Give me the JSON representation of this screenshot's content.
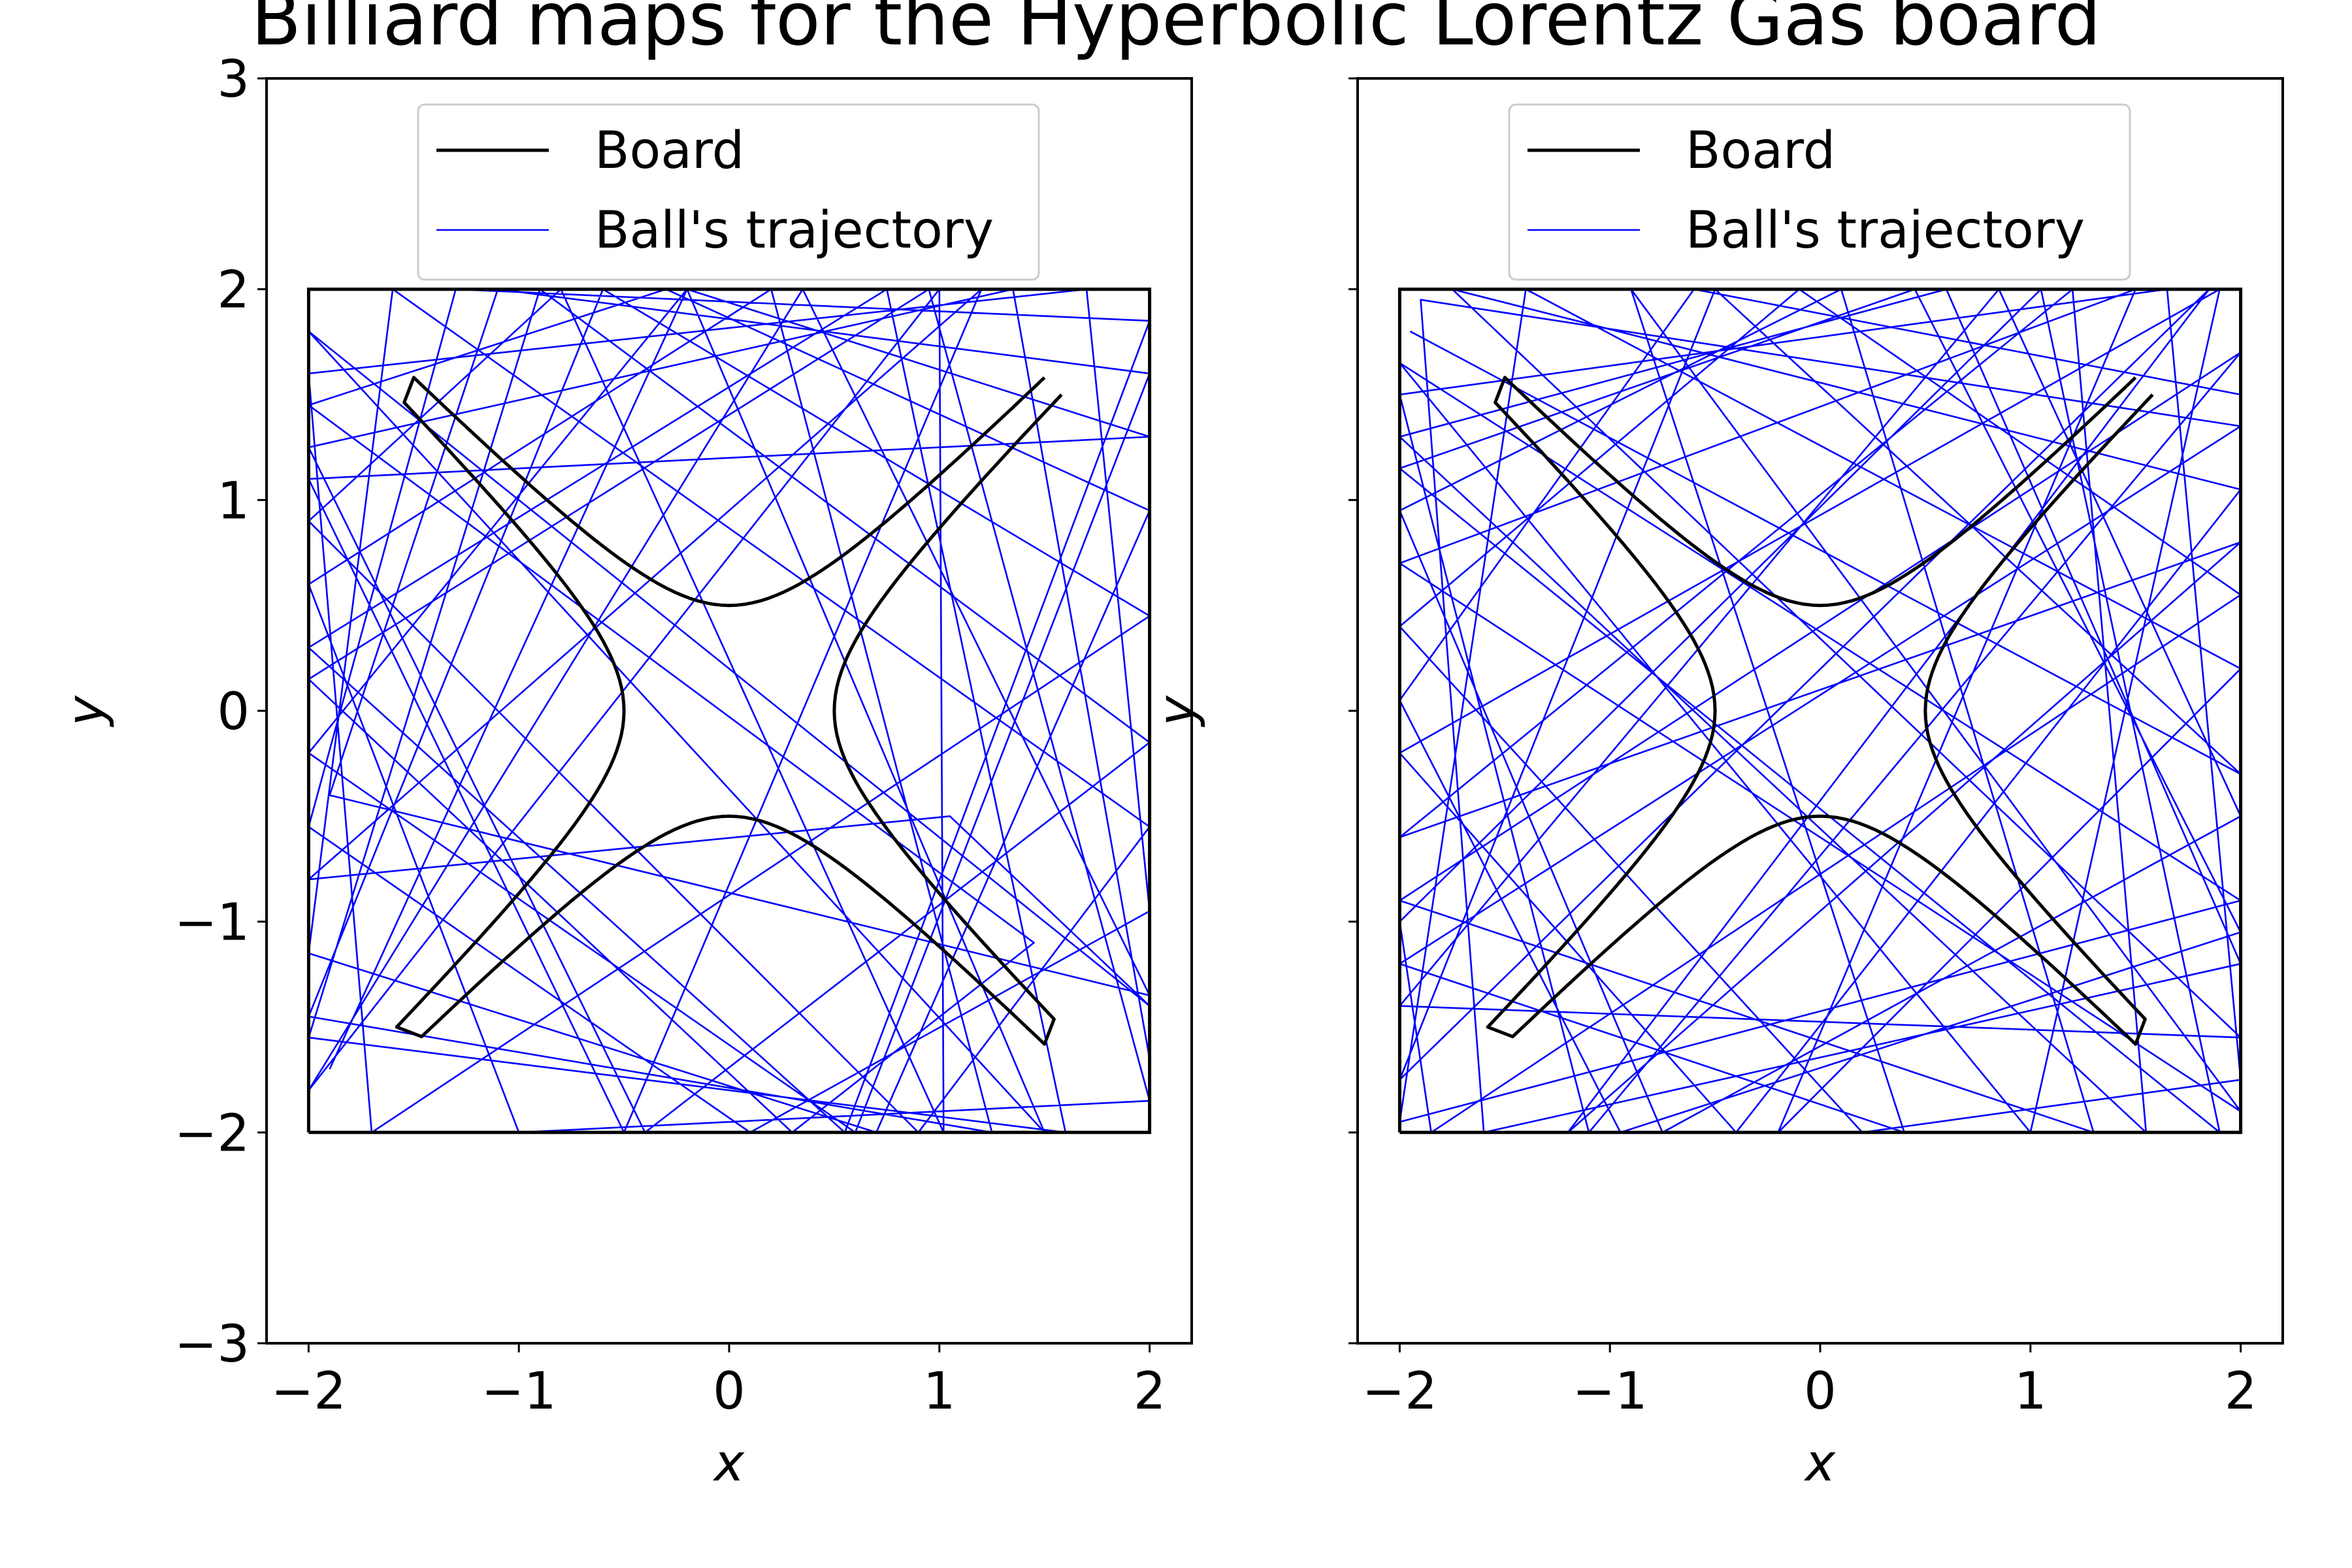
{
  "title": "Billiard maps for the Hyperbolic Lorentz Gas board",
  "colors": {
    "board": "#000000",
    "trajectory": "#0000ff",
    "legend_frame": "#cccccc"
  },
  "chart_data": [
    {
      "type": "line",
      "panel": "left",
      "xlabel": "x",
      "ylabel": "y",
      "xlim": [
        -2.2,
        2.2
      ],
      "ylim": [
        -3,
        3
      ],
      "xticks": [
        -2,
        -1,
        0,
        1,
        2
      ],
      "yticks": [
        -3,
        -2,
        -1,
        0,
        1,
        2,
        3
      ],
      "xtick_labels": [
        "−2",
        "−1",
        "0",
        "1",
        "2"
      ],
      "ytick_labels": [
        "−3",
        "−2",
        "−1",
        "0",
        "1",
        "2",
        "3"
      ],
      "grid": false,
      "legend_position": "upper center",
      "series": [
        {
          "name": "Board",
          "kind": "board",
          "outer_square": [
            [
              -2,
              -2
            ],
            [
              2,
              -2
            ],
            [
              2,
              2
            ],
            [
              -2,
              2
            ],
            [
              -2,
              -2
            ]
          ],
          "inner_hyperbola_a": 0.5,
          "inner_corner": 1.5
        },
        {
          "name": "Ball's trajectory",
          "kind": "trajectory",
          "points": [
            [
              -1.9,
              -1.7
            ],
            [
              -0.2,
              2
            ],
            [
              2,
              1.3
            ],
            [
              -2,
              1.1
            ],
            [
              -0.5,
              -2
            ],
            [
              1.2,
              2
            ],
            [
              -2,
              -0.8
            ],
            [
              1.05,
              -0.5
            ],
            [
              2,
              -1.4
            ],
            [
              -2,
              1.8
            ],
            [
              1.5,
              -2
            ],
            [
              -0.2,
              2
            ],
            [
              -2,
              -0.2
            ],
            [
              0.6,
              -2
            ],
            [
              2,
              1.6
            ],
            [
              -1.1,
              2
            ],
            [
              -1.9,
              -0.4
            ],
            [
              2,
              -1.35
            ],
            [
              0.35,
              2
            ],
            [
              -2,
              -1.8
            ],
            [
              1.0,
              2
            ],
            [
              1.02,
              -2
            ],
            [
              -0.8,
              2
            ],
            [
              -2,
              0.9
            ],
            [
              0.9,
              -2
            ],
            [
              2,
              -0.55
            ],
            [
              -1.6,
              2
            ],
            [
              -2,
              -1.15
            ],
            [
              0.7,
              -2
            ],
            [
              2,
              0.95
            ],
            [
              -0.3,
              2
            ],
            [
              -2,
              1.45
            ],
            [
              1.45,
              -1.1
            ],
            [
              0.3,
              -2
            ],
            [
              -2,
              0.15
            ],
            [
              0.95,
              2
            ],
            [
              2,
              -1.85
            ],
            [
              -1.0,
              -2
            ],
            [
              -2,
              0.6
            ],
            [
              0.2,
              2
            ],
            [
              1.25,
              -2
            ],
            [
              -2,
              -1.45
            ],
            [
              -0.6,
              2
            ],
            [
              2,
              0.45
            ],
            [
              -1.7,
              -2
            ],
            [
              -2,
              1.6
            ],
            [
              1.7,
              2
            ],
            [
              2,
              -0.95
            ],
            [
              0.1,
              -2
            ],
            [
              -2,
              -0.55
            ],
            [
              -1.3,
              2
            ],
            [
              2,
              1.85
            ],
            [
              0.55,
              -2
            ],
            [
              -2,
              0.3
            ],
            [
              0.75,
              2
            ],
            [
              1.6,
              -2
            ],
            [
              -2,
              -1.55
            ],
            [
              -0.9,
              2
            ],
            [
              2,
              -0.15
            ],
            [
              -0.4,
              -2
            ],
            [
              -2,
              1.25
            ],
            [
              1.35,
              2
            ],
            [
              2,
              -1.65
            ]
          ]
        }
      ]
    },
    {
      "type": "line",
      "panel": "right",
      "xlabel": "x",
      "ylabel": "y",
      "xlim": [
        -2.2,
        2.2
      ],
      "ylim": [
        -3,
        3
      ],
      "xticks": [
        -2,
        -1,
        0,
        1,
        2
      ],
      "yticks": [
        -3,
        -2,
        -1,
        0,
        1,
        2,
        3
      ],
      "xtick_labels": [
        "−2",
        "−1",
        "0",
        "1",
        "2"
      ],
      "ytick_labels": [],
      "grid": false,
      "legend_position": "upper center",
      "series": [
        {
          "name": "Board",
          "kind": "board",
          "outer_square": [
            [
              -2,
              -2
            ],
            [
              2,
              -2
            ],
            [
              2,
              2
            ],
            [
              -2,
              2
            ],
            [
              -2,
              -2
            ]
          ],
          "inner_hyperbola_a": 0.5,
          "inner_corner": 1.5
        },
        {
          "name": "Ball's trajectory",
          "kind": "trajectory",
          "points": [
            [
              -1.95,
              1.8
            ],
            [
              2,
              -0.3
            ],
            [
              -0.5,
              2
            ],
            [
              -2,
              -1.75
            ],
            [
              1.85,
              2
            ],
            [
              -1.2,
              -2
            ],
            [
              2,
              0.8
            ],
            [
              -2,
              -0.6
            ],
            [
              1.2,
              2
            ],
            [
              1.55,
              -2
            ],
            [
              -2,
              1.3
            ],
            [
              0.6,
              2
            ],
            [
              2,
              -1.2
            ],
            [
              -1.6,
              -2
            ],
            [
              -1.9,
              1.95
            ],
            [
              2,
              1.35
            ],
            [
              -2,
              -1.2
            ],
            [
              0.4,
              -2
            ],
            [
              -0.9,
              2
            ],
            [
              2,
              -1.9
            ],
            [
              -2,
              0.7
            ],
            [
              1.5,
              2
            ],
            [
              -0.2,
              -2
            ],
            [
              2,
              0.2
            ],
            [
              -1.4,
              2
            ],
            [
              -2,
              -1.95
            ],
            [
              2,
              -0.9
            ],
            [
              -2,
              1.65
            ],
            [
              1.0,
              -2
            ],
            [
              1.9,
              2
            ],
            [
              -2,
              -0.2
            ],
            [
              -0.4,
              -2
            ],
            [
              2,
              1.05
            ],
            [
              -1.75,
              2
            ],
            [
              2,
              -1.55
            ],
            [
              -2,
              -1.4
            ],
            [
              0.85,
              2
            ],
            [
              2,
              -0.5
            ],
            [
              -0.75,
              -2
            ],
            [
              -2,
              0.95
            ],
            [
              0.1,
              2
            ],
            [
              1.3,
              -2
            ],
            [
              -2,
              -0.9
            ],
            [
              2,
              1.7
            ],
            [
              -1.1,
              -2
            ],
            [
              -2,
              1.5
            ],
            [
              1.65,
              2
            ],
            [
              2,
              -1.75
            ],
            [
              0.2,
              -2
            ],
            [
              -2,
              0.4
            ],
            [
              -0.1,
              2
            ],
            [
              2,
              0.55
            ],
            [
              -1.85,
              -2
            ],
            [
              -2,
              -1.0
            ],
            [
              1.05,
              2
            ],
            [
              1.9,
              -2
            ],
            [
              -2,
              1.15
            ],
            [
              0.45,
              2
            ],
            [
              2,
              -1.05
            ],
            [
              -0.95,
              -2
            ],
            [
              -2,
              0.05
            ],
            [
              -0.6,
              2
            ],
            [
              2,
              1.5
            ]
          ]
        }
      ]
    }
  ]
}
